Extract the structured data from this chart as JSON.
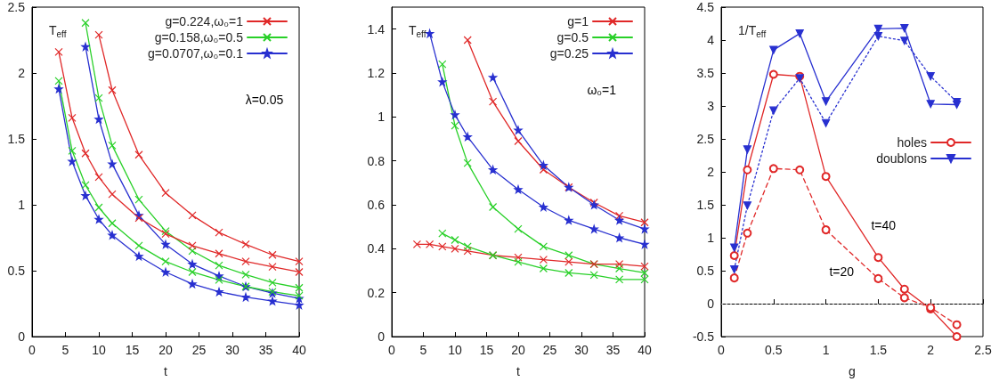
{
  "chart_data": [
    {
      "type": "line",
      "xlabel": "t",
      "ylabel": "T$_{eff}$",
      "xlim": [
        0,
        40
      ],
      "xticks": [
        0,
        5,
        10,
        15,
        20,
        25,
        30,
        35,
        40
      ],
      "ylim": [
        0,
        2.5
      ],
      "yticks": [
        0,
        0.5,
        1,
        1.5,
        2,
        2.5
      ],
      "grid": false,
      "legend": "top right",
      "annotations": [
        "λ=0.05"
      ],
      "series": [
        {
          "name": "g=0.224,ω₀=1",
          "color": "#e02828",
          "marker": "cross",
          "x": [
            10,
            12,
            16,
            20,
            24,
            28,
            32,
            36,
            40
          ],
          "values": [
            2.29,
            1.87,
            1.38,
            1.09,
            0.92,
            0.79,
            0.7,
            0.62,
            0.57
          ]
        },
        {
          "name": "g=0.158,ω₀=0.5",
          "color": "#28d028",
          "marker": "cross",
          "x": [
            8,
            10,
            12,
            16,
            20,
            24,
            28,
            32,
            36,
            40
          ],
          "values": [
            2.38,
            1.81,
            1.45,
            1.04,
            0.8,
            0.65,
            0.54,
            0.47,
            0.41,
            0.37
          ]
        },
        {
          "name": "g=0.0707,ω₀=0.1",
          "color": "#2830d0",
          "marker": "star",
          "x": [
            8,
            10,
            12,
            16,
            20,
            24,
            28,
            32,
            36,
            40
          ],
          "values": [
            2.2,
            1.65,
            1.31,
            0.92,
            0.7,
            0.55,
            0.46,
            0.38,
            0.33,
            0.29
          ]
        },
        {
          "color": "#e02828",
          "marker": "cross",
          "x": [
            4,
            6,
            8,
            10,
            12,
            16,
            20,
            24,
            28,
            32,
            36,
            40
          ],
          "values": [
            2.16,
            1.66,
            1.39,
            1.21,
            1.08,
            0.9,
            0.78,
            0.69,
            0.63,
            0.57,
            0.53,
            0.49
          ]
        },
        {
          "color": "#28d028",
          "marker": "cross",
          "x": [
            4,
            6,
            8,
            10,
            12,
            16,
            20,
            24,
            28,
            32,
            36,
            40
          ],
          "values": [
            1.94,
            1.41,
            1.15,
            0.98,
            0.86,
            0.69,
            0.57,
            0.49,
            0.43,
            0.38,
            0.34,
            0.31
          ]
        },
        {
          "color": "#2830d0",
          "marker": "star",
          "x": [
            4,
            6,
            8,
            10,
            12,
            16,
            20,
            24,
            28,
            32,
            36,
            40
          ],
          "values": [
            1.88,
            1.33,
            1.07,
            0.89,
            0.77,
            0.61,
            0.49,
            0.4,
            0.34,
            0.3,
            0.27,
            0.24
          ]
        }
      ]
    },
    {
      "type": "line",
      "xlabel": "t",
      "ylabel": "T$_{eff}$",
      "xlim": [
        0,
        40
      ],
      "xticks": [
        0,
        5,
        10,
        15,
        20,
        25,
        30,
        35,
        40
      ],
      "ylim": [
        0,
        1.5
      ],
      "yticks": [
        0,
        0.2,
        0.4,
        0.6,
        0.8,
        1,
        1.2,
        1.4
      ],
      "grid": false,
      "legend": "top right",
      "annotations": [
        "ω₀=1"
      ],
      "series": [
        {
          "name": "g=1",
          "color": "#e02828",
          "marker": "cross",
          "x": [
            12,
            16,
            20,
            24,
            28,
            32,
            36,
            40
          ],
          "values": [
            1.35,
            1.07,
            0.89,
            0.76,
            0.68,
            0.61,
            0.55,
            0.52
          ]
        },
        {
          "name": "g=0.5",
          "color": "#28d028",
          "marker": "cross",
          "x": [
            8,
            10,
            12,
            16,
            20,
            24,
            28,
            32,
            36,
            40
          ],
          "values": [
            1.24,
            0.96,
            0.79,
            0.59,
            0.49,
            0.41,
            0.37,
            0.33,
            0.31,
            0.29
          ]
        },
        {
          "name": "g=0.25",
          "color": "#2830d0",
          "marker": "star",
          "x": [
            16,
            20,
            24,
            28,
            32,
            36,
            40
          ],
          "values": [
            1.18,
            0.94,
            0.78,
            0.68,
            0.6,
            0.53,
            0.49
          ]
        },
        {
          "color": "#e02828",
          "marker": "cross",
          "x": [
            4,
            6,
            8,
            10,
            12,
            16,
            20,
            24,
            28,
            32,
            36,
            40
          ],
          "values": [
            0.42,
            0.42,
            0.41,
            0.4,
            0.39,
            0.37,
            0.36,
            0.35,
            0.34,
            0.33,
            0.33,
            0.32
          ]
        },
        {
          "color": "#28d028",
          "marker": "cross",
          "x": [
            8,
            10,
            12,
            16,
            20,
            24,
            28,
            32,
            36,
            40
          ],
          "values": [
            0.47,
            0.44,
            0.41,
            0.37,
            0.34,
            0.31,
            0.29,
            0.28,
            0.26,
            0.26
          ]
        },
        {
          "color": "#2830d0",
          "marker": "star",
          "x": [
            6,
            8,
            10,
            12,
            16,
            20,
            24,
            28,
            32,
            36,
            40
          ],
          "values": [
            1.38,
            1.16,
            1.01,
            0.91,
            0.76,
            0.67,
            0.59,
            0.53,
            0.49,
            0.45,
            0.42
          ]
        }
      ]
    },
    {
      "type": "line",
      "xlabel": "g",
      "ylabel": "1/T$_{eff}$",
      "xlim": [
        0,
        2.5
      ],
      "xticks": [
        0,
        0.5,
        1,
        1.5,
        2,
        2.5
      ],
      "ylim": [
        -0.5,
        4.5
      ],
      "yticks": [
        -0.5,
        0,
        0.5,
        1,
        1.5,
        2,
        2.5,
        3,
        3.5,
        4,
        4.5
      ],
      "grid": false,
      "legend": "right",
      "annotations": [
        "t=40",
        "t=20"
      ],
      "ref_lines": [
        {
          "axis": "y",
          "value": 0,
          "color": "#999999",
          "line_style": "dotted"
        }
      ],
      "series": [
        {
          "name": "holes",
          "color": "#e02828",
          "marker": "circle",
          "line_style": "solid",
          "x": [
            0.125,
            0.25,
            0.5,
            0.75,
            1,
            1.5,
            1.75,
            2,
            2.25
          ],
          "values": [
            0.73,
            2.03,
            3.48,
            3.45,
            1.93,
            0.7,
            0.22,
            -0.08,
            -0.5
          ]
        },
        {
          "name": "doublons",
          "color": "#2830d0",
          "marker": "triangle",
          "line_style": "solid",
          "x": [
            0.125,
            0.25,
            0.5,
            0.75,
            1,
            1.5,
            1.75,
            2,
            2.25
          ],
          "values": [
            0.85,
            2.34,
            3.85,
            4.1,
            3.07,
            4.17,
            4.18,
            3.03,
            3.02
          ]
        },
        {
          "color": "#e02828",
          "marker": "circle",
          "line_style": "dashed",
          "x": [
            0.125,
            0.25,
            0.5,
            0.75,
            1,
            1.5,
            1.75,
            2,
            2.25
          ],
          "values": [
            0.39,
            1.07,
            2.05,
            2.03,
            1.12,
            0.38,
            0.09,
            -0.06,
            -0.32
          ]
        },
        {
          "color": "#2830d0",
          "marker": "triangle",
          "line_style": "dotted",
          "x": [
            0.125,
            0.25,
            0.5,
            0.75,
            1,
            1.5,
            1.75,
            2,
            2.25
          ],
          "values": [
            0.52,
            1.49,
            2.93,
            3.42,
            2.74,
            4.06,
            3.99,
            3.45,
            3.06
          ]
        }
      ]
    }
  ]
}
